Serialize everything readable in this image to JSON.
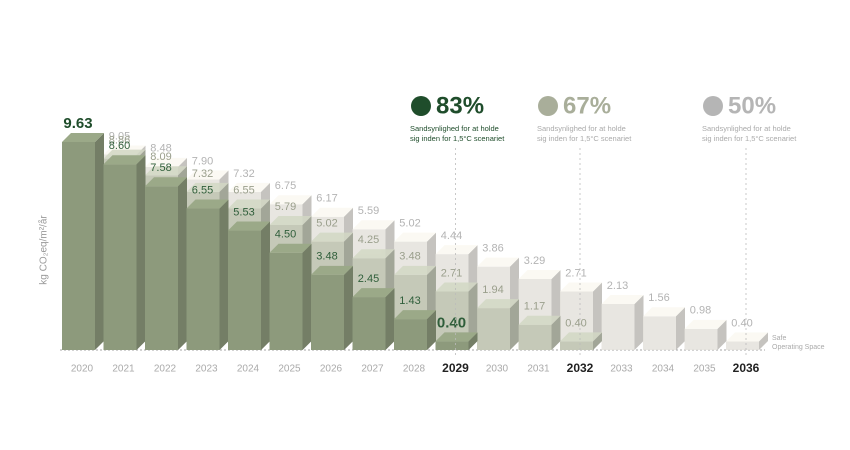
{
  "chart_data": {
    "type": "bar3d",
    "y_label": "kg CO₂eq/m²/år",
    "categories": [
      "2020",
      "2021",
      "2022",
      "2023",
      "2024",
      "2025",
      "2026",
      "2027",
      "2028",
      "2029",
      "2030",
      "2031",
      "2032",
      "2033",
      "2034",
      "2035",
      "2036"
    ],
    "series": [
      {
        "name": "50%",
        "description": "Sandsynlighed for at holde sig inden for 1,5°C scenariet",
        "color": "#e4e2dc",
        "label_color": "#b3b3b3",
        "dot_color": "#b5b5b5",
        "values": [
          null,
          9.05,
          8.48,
          7.9,
          7.32,
          6.75,
          6.17,
          5.59,
          5.02,
          4.44,
          3.86,
          3.29,
          2.71,
          2.13,
          1.56,
          0.98,
          0.4
        ],
        "value_labels": [
          null,
          "9.05",
          "8.48",
          "7.90",
          "7.32",
          "6.75",
          "6.17",
          "5.59",
          "5.02",
          "4.44",
          "3.86",
          "3.29",
          "2.71",
          "2.13",
          "1.56",
          "0.98",
          "0.40"
        ]
      },
      {
        "name": "67%",
        "description": "Sandsynlighed for at holde sig inden for 1,5°C scenariet",
        "color": "#bfc4b2",
        "label_color": "#9a9f8c",
        "dot_color": "#a9ae9a",
        "values": [
          null,
          8.86,
          8.09,
          7.32,
          6.55,
          5.79,
          5.02,
          4.25,
          3.48,
          2.71,
          1.94,
          1.17,
          0.4,
          null,
          null,
          null,
          null
        ],
        "value_labels": [
          null,
          "8.86",
          "8.09",
          "7.32",
          "6.55",
          "5.79",
          "5.02",
          "4.25",
          "3.48",
          "2.71",
          "1.94",
          "1.17",
          "0.40",
          null,
          null,
          null,
          null
        ]
      },
      {
        "name": "83%",
        "description": "Sandsynlighed for at holde sig inden for 1,5°C scenariet",
        "color": "#8d9a7c",
        "label_color": "#2f5e3a",
        "dot_color": "#1f4d2b",
        "values": [
          9.63,
          8.6,
          7.58,
          6.55,
          5.53,
          4.5,
          3.48,
          2.45,
          1.43,
          0.4,
          null,
          null,
          null,
          null,
          null,
          null,
          null
        ],
        "value_labels": [
          "9.63",
          "8.60",
          "7.58",
          "6.55",
          "5.53",
          "4.50",
          "3.48",
          "2.45",
          "1.43",
          "0.40",
          null,
          null,
          null,
          null,
          null,
          null,
          null
        ]
      }
    ],
    "safe_label": [
      "Safe",
      "Operating Space"
    ]
  }
}
